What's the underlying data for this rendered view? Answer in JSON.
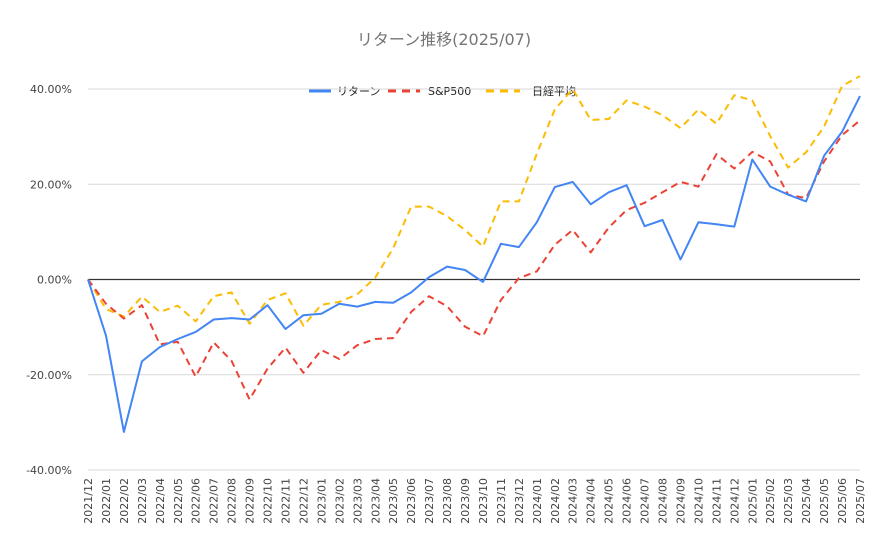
{
  "chart_data": {
    "type": "line",
    "title": "リターン推移(2025/07)",
    "xlabel": "",
    "ylabel": "",
    "ylim": [
      -40,
      40
    ],
    "yticks": [
      40,
      20,
      0,
      -20,
      -40
    ],
    "ytick_labels": [
      "40.00%",
      "20.00%",
      "0.00%",
      "-20.00%",
      "-40.00%"
    ],
    "legend_position": "top",
    "grid": true,
    "categories": [
      "2021/12",
      "2022/01",
      "2022/02",
      "2022/03",
      "2022/04",
      "2022/05",
      "2022/06",
      "2022/07",
      "2022/08",
      "2022/09",
      "2022/10",
      "2022/11",
      "2022/12",
      "2023/01",
      "2023/02",
      "2023/03",
      "2023/04",
      "2023/05",
      "2023/06",
      "2023/07",
      "2023/08",
      "2023/09",
      "2023/10",
      "2023/11",
      "2023/12",
      "2024/01",
      "2024/02",
      "2024/03",
      "2024/04",
      "2024/05",
      "2024/06",
      "2024/07",
      "2024/08",
      "2024/09",
      "2024/10",
      "2024/11",
      "2024/12",
      "2025/01",
      "2025/02",
      "2025/03",
      "2025/04",
      "2025/05",
      "2025/06",
      "2025/07"
    ],
    "series": [
      {
        "name": "リターン",
        "color": "#4285f4",
        "style": "solid",
        "values": [
          0,
          -11.8,
          -32,
          -17.2,
          -14.2,
          -12.5,
          -11,
          -8.4,
          -8.1,
          -8.4,
          -5.4,
          -10.4,
          -7.5,
          -7.2,
          -5.1,
          -5.7,
          -4.7,
          -4.9,
          -2.7,
          0.5,
          2.7,
          2,
          -0.5,
          7.5,
          6.8,
          12,
          19.4,
          20.5,
          15.8,
          18.3,
          19.8,
          11.2,
          12.5,
          4.2,
          12,
          11.6,
          11.1,
          25.2,
          19.5,
          17.8,
          16.4,
          26,
          31,
          38.5
        ]
      },
      {
        "name": "S&P500",
        "color": "#ea4335",
        "style": "dashed",
        "values": [
          0,
          -5.1,
          -8.2,
          -5.4,
          -13.6,
          -13.1,
          -20.4,
          -13.2,
          -17.1,
          -25.2,
          -18.7,
          -14.3,
          -19.6,
          -14.8,
          -16.7,
          -13.8,
          -12.5,
          -12.3,
          -6.8,
          -3.5,
          -5.6,
          -9.9,
          -11.9,
          -4.3,
          0.3,
          1.7,
          7.3,
          10.4,
          5.7,
          10.9,
          14.6,
          16.1,
          18.3,
          20.5,
          19.5,
          26.3,
          23.3,
          26.8,
          24.8,
          17.8,
          17.1,
          24.8,
          30.3,
          33.4
        ]
      },
      {
        "name": "日経平均",
        "color": "#fbbc04",
        "style": "dashed",
        "values": [
          0,
          -6.2,
          -7.8,
          -3.6,
          -6.8,
          -5.5,
          -8.8,
          -3.5,
          -2.7,
          -9.3,
          -4.3,
          -2.9,
          -9.7,
          -5.3,
          -4.7,
          -3.1,
          0.4,
          6.6,
          15.3,
          15.3,
          13.3,
          10.4,
          6.9,
          16.4,
          16.4,
          26.4,
          35.7,
          40,
          33.5,
          33.7,
          37.6,
          36.3,
          34.5,
          31.8,
          35.7,
          32.7,
          38.7,
          37.6,
          30.1,
          23.5,
          26.7,
          32.1,
          40.6,
          42.7
        ]
      }
    ]
  }
}
